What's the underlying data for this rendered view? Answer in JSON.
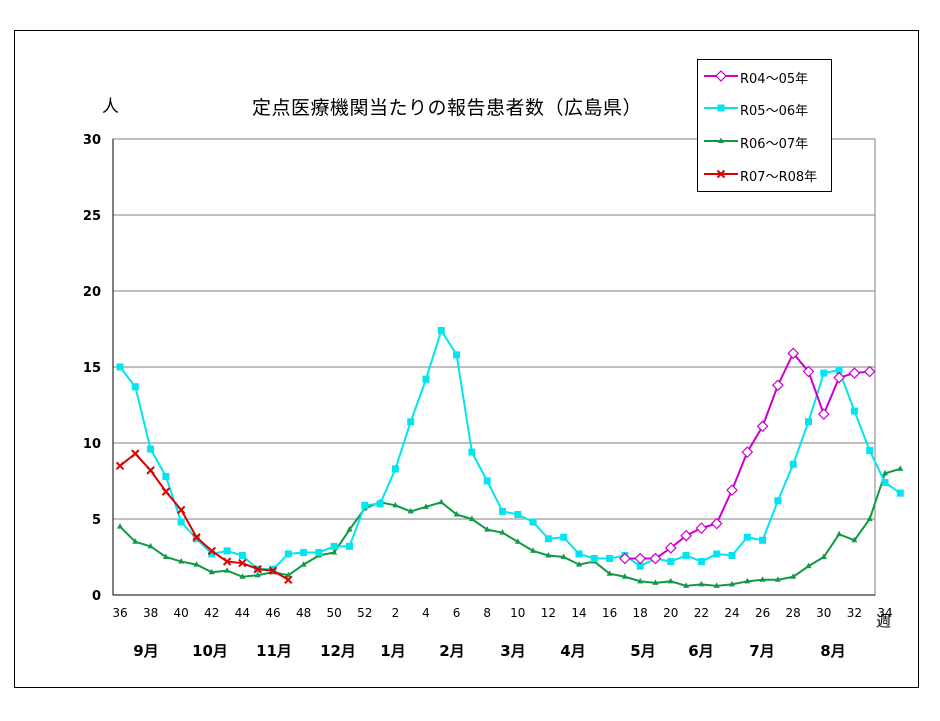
{
  "title": "定点医療機関当たりの報告患者数（広島県）",
  "y_unit": "人",
  "x_unit": "週",
  "chart_data": {
    "type": "line",
    "title": "定点医療機関当たりの報告患者数（広島県）",
    "ylabel": "人",
    "xlabel": "週",
    "ylim": [
      0,
      30
    ],
    "yticks": [
      0,
      5,
      10,
      15,
      20,
      25,
      30
    ],
    "grid": "horizontal",
    "legend": "top-right",
    "x_tick_labels": [
      "36",
      "38",
      "40",
      "42",
      "44",
      "46",
      "48",
      "50",
      "52",
      "2",
      "4",
      "6",
      "8",
      "10",
      "12",
      "14",
      "16",
      "18",
      "20",
      "22",
      "24",
      "26",
      "28",
      "30",
      "32",
      "34"
    ],
    "month_labels": [
      "9月",
      "10月",
      "11月",
      "12月",
      "1月",
      "2月",
      "3月",
      "4月",
      "5月",
      "6月",
      "7月",
      "8月"
    ],
    "series": [
      {
        "name": "R04～05年",
        "color": "#cc00cc",
        "marker": "diamond-open",
        "start_index": 33,
        "values": [
          2.4,
          2.4,
          2.4,
          3.1,
          3.9,
          4.4,
          4.7,
          6.9,
          9.4,
          11.1,
          13.8,
          15.9,
          14.7,
          11.9,
          14.3,
          14.6,
          14.7
        ]
      },
      {
        "name": "R05～06年",
        "color": "#00e5ee",
        "marker": "square",
        "start_index": 0,
        "values": [
          15.0,
          13.7,
          9.6,
          7.8,
          4.8,
          3.7,
          2.7,
          2.9,
          2.6,
          1.7,
          1.7,
          2.7,
          2.8,
          2.8,
          3.2,
          3.2,
          5.9,
          6.0,
          8.3,
          11.4,
          14.2,
          17.4,
          15.8,
          9.4,
          7.5,
          5.5,
          5.3,
          4.8,
          3.7,
          3.8,
          2.7,
          2.4,
          2.4,
          2.6,
          1.9,
          2.4,
          2.2,
          2.6,
          2.2,
          2.7,
          2.6,
          3.8,
          3.6,
          6.2,
          8.6,
          11.4,
          14.6,
          14.8,
          12.1,
          9.5,
          7.4,
          6.7
        ]
      },
      {
        "name": "R06～07年",
        "color": "#119944",
        "marker": "triangle",
        "start_index": 0,
        "values": [
          4.5,
          3.5,
          3.2,
          2.5,
          2.2,
          2.0,
          1.5,
          1.6,
          1.2,
          1.3,
          1.5,
          1.3,
          2.0,
          2.6,
          2.8,
          4.3,
          5.7,
          6.1,
          5.9,
          5.5,
          5.8,
          6.1,
          5.3,
          5.0,
          4.3,
          4.1,
          3.5,
          2.9,
          2.6,
          2.5,
          2.0,
          2.2,
          1.4,
          1.2,
          0.9,
          0.8,
          0.9,
          0.6,
          0.7,
          0.6,
          0.7,
          0.9,
          1.0,
          1.0,
          1.2,
          1.9,
          2.5,
          4.0,
          3.6,
          5.0,
          8.0,
          8.3
        ]
      },
      {
        "name": "R07～R08年",
        "color": "#dd0000",
        "marker": "x",
        "start_index": 0,
        "values": [
          8.5,
          9.3,
          8.2,
          6.8,
          5.6,
          3.8,
          2.9,
          2.2,
          2.1,
          1.7,
          1.6,
          1.0
        ]
      }
    ]
  }
}
